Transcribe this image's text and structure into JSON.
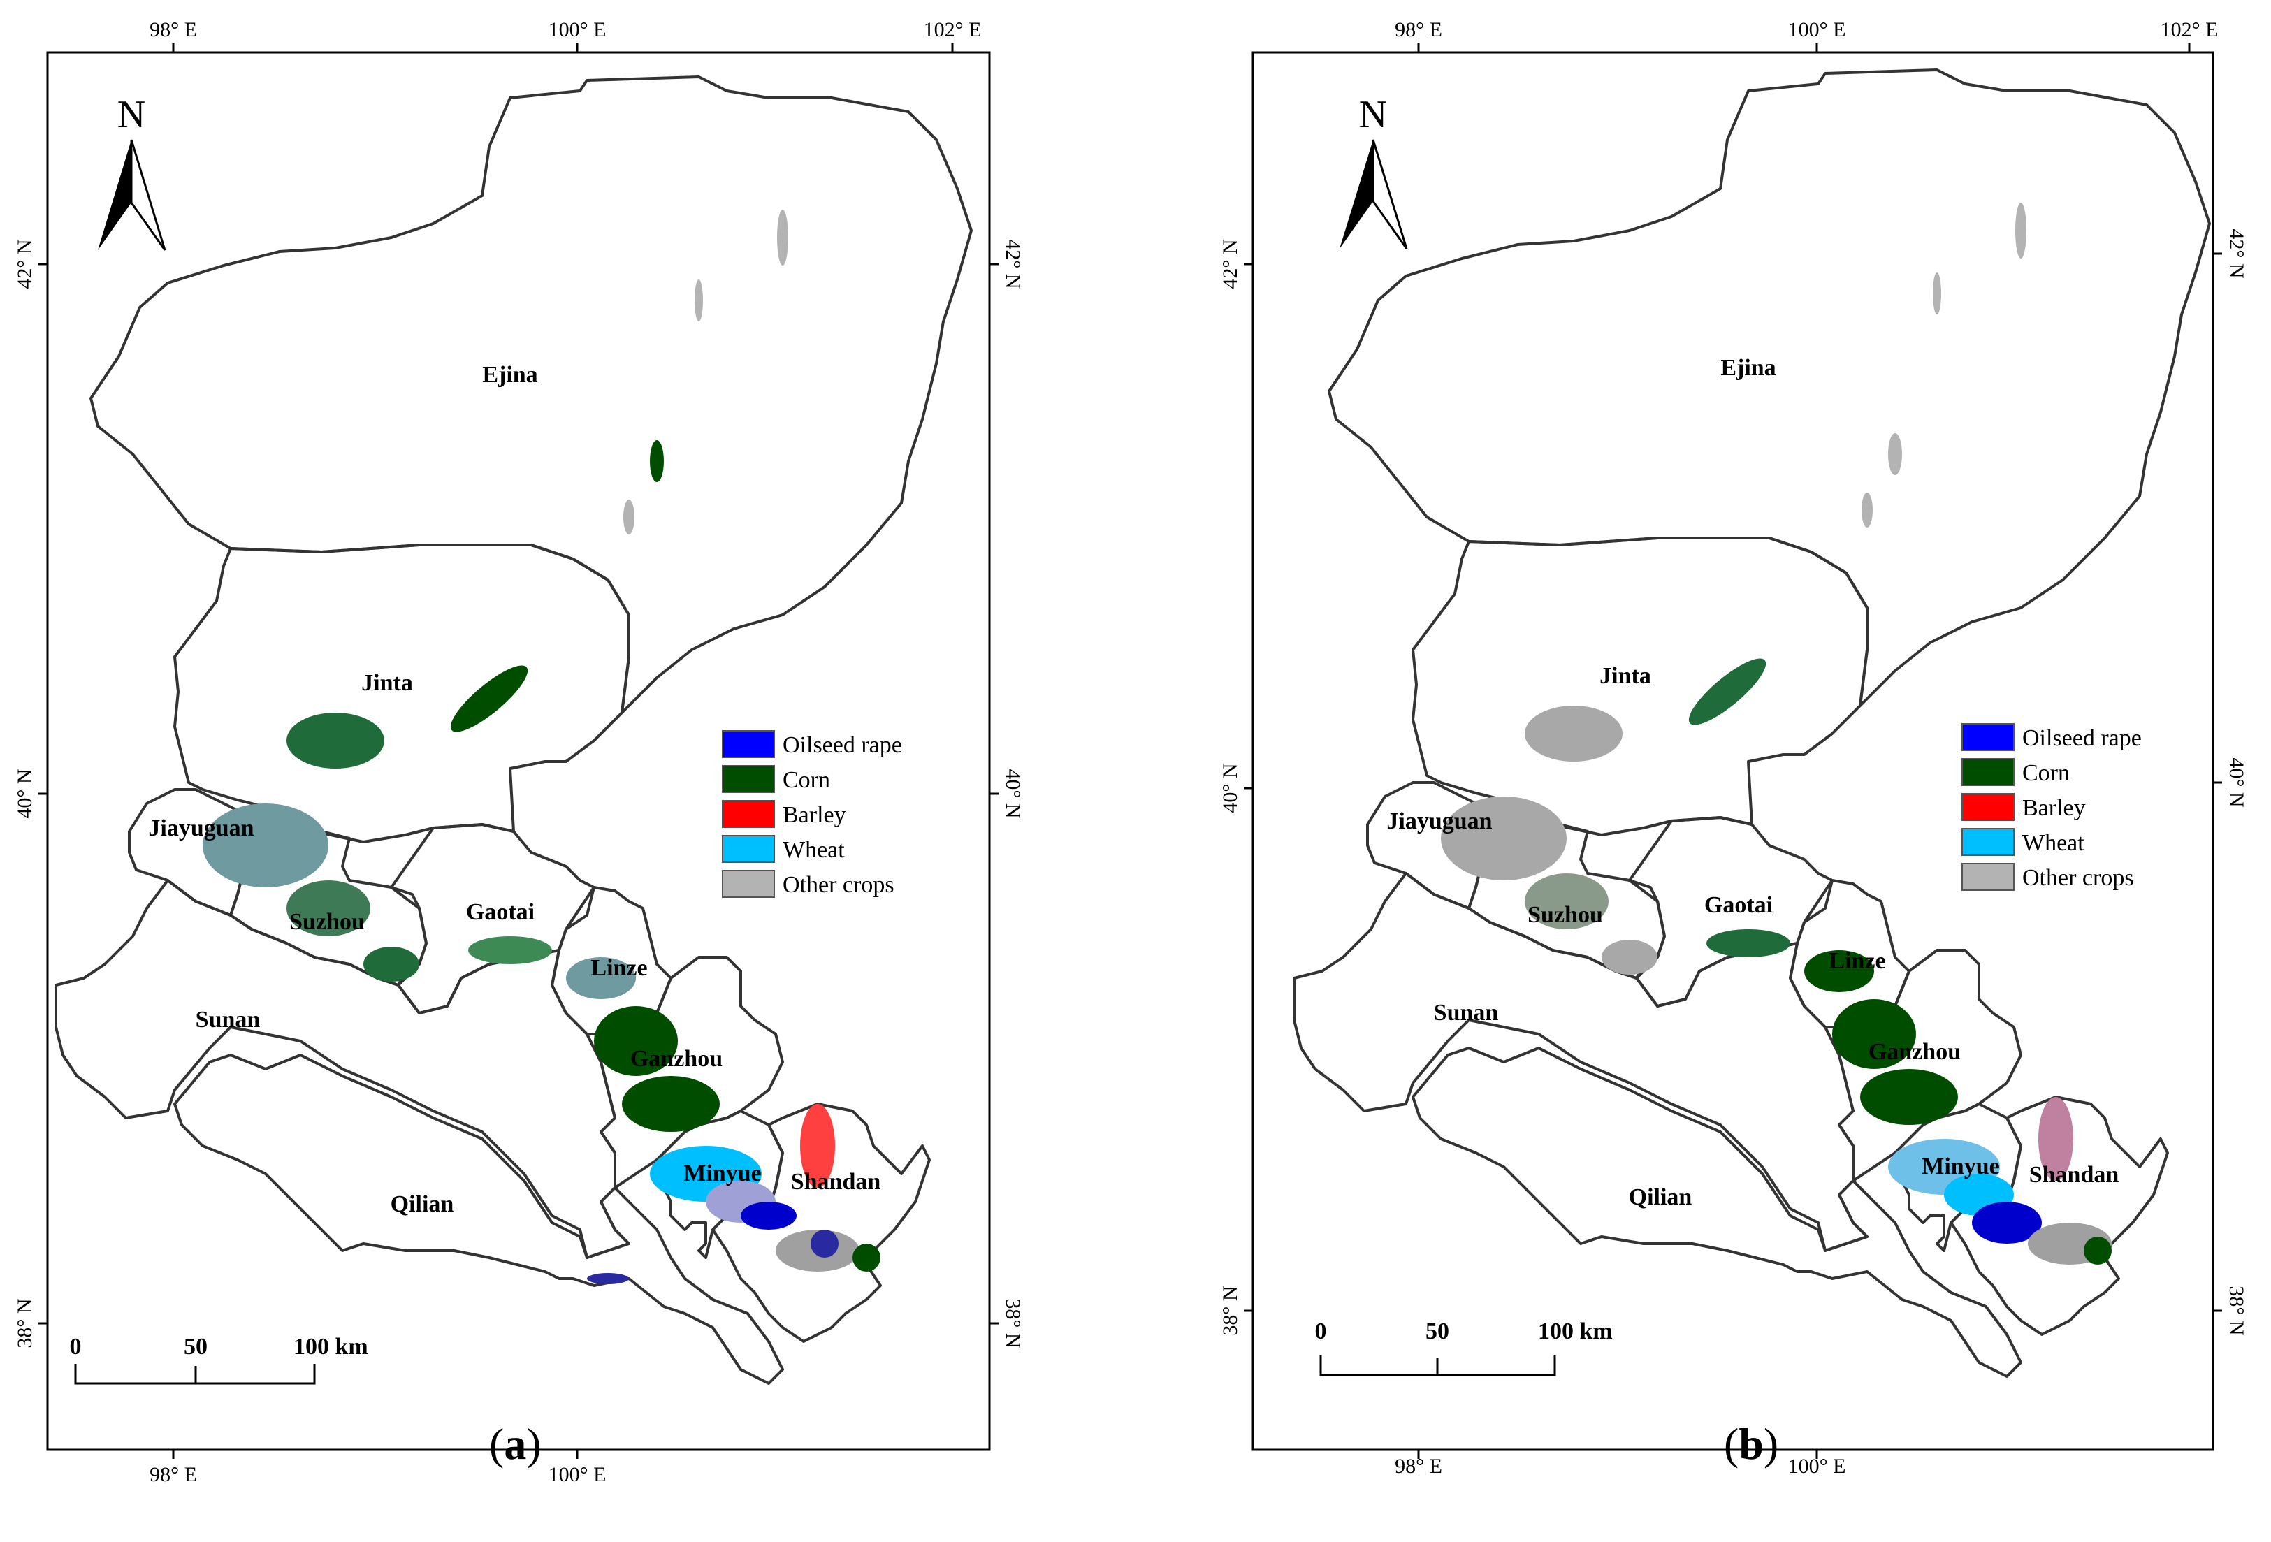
{
  "panels": [
    {
      "id": "a",
      "caption_open": "(",
      "caption_letter": "a",
      "caption_close": ")",
      "top_ticks": [
        "98° E",
        "100° E",
        "102° E"
      ],
      "bottom_ticks": [
        "98° E",
        "100° E"
      ],
      "left_ticks": [
        "42° N",
        "40° N",
        "38° N"
      ],
      "right_ticks": [
        "42° N",
        "40° N",
        "38° N"
      ],
      "north_label": "N",
      "counties": [
        "Ejina",
        "Jinta",
        "Jiayuguan",
        "Suzhou",
        "Gaotai",
        "Linze",
        "Sunan",
        "Ganzhou",
        "Minyue",
        "Shandan",
        "Qilian"
      ],
      "legend": [
        {
          "label": "Oilseed rape",
          "color": "#0000ff"
        },
        {
          "label": "Corn",
          "color": "#004d00"
        },
        {
          "label": "Barley",
          "color": "#ff0000"
        },
        {
          "label": "Wheat",
          "color": "#00bfff"
        },
        {
          "label": "Other crops",
          "color": "#b3b3b3"
        }
      ],
      "scale": {
        "zero": "0",
        "mid": "50",
        "end": "100 km"
      }
    },
    {
      "id": "b",
      "caption_open": "(",
      "caption_letter": "b",
      "caption_close": ")",
      "top_ticks": [
        "98° E",
        "100° E",
        "102° E"
      ],
      "bottom_ticks": [
        "98° E",
        "100° E"
      ],
      "left_ticks": [
        "42° N",
        "40° N",
        "38° N"
      ],
      "right_ticks": [
        "42° N",
        "40° N",
        "38° N"
      ],
      "north_label": "N",
      "counties": [
        "Ejina",
        "Jinta",
        "Jiayuguan",
        "Suzhou",
        "Gaotai",
        "Linze",
        "Sunan",
        "Ganzhou",
        "Minyue",
        "Shandan",
        "Qilian"
      ],
      "legend": [
        {
          "label": "Oilseed rape",
          "color": "#0000ff"
        },
        {
          "label": "Corn",
          "color": "#004d00"
        },
        {
          "label": "Barley",
          "color": "#ff0000"
        },
        {
          "label": "Wheat",
          "color": "#00bfff"
        },
        {
          "label": "Other crops",
          "color": "#b3b3b3"
        }
      ],
      "scale": {
        "zero": "0",
        "mid": "50",
        "end": "100 km"
      }
    }
  ]
}
